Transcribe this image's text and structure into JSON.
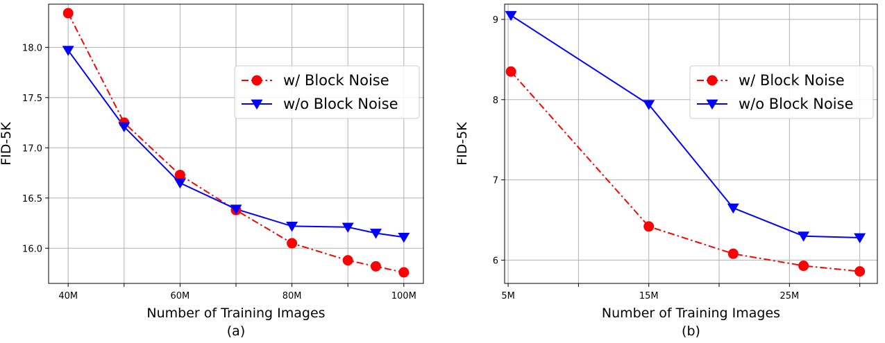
{
  "chart_data": [
    {
      "type": "line",
      "caption": "(a)",
      "xlabel": "Number of Training Images",
      "ylabel": "FID-5K",
      "x_ticks": [
        40,
        50,
        60,
        70,
        80,
        90,
        100
      ],
      "x_tick_labels": [
        "40M",
        "",
        "60M",
        "",
        "80M",
        "",
        "100M"
      ],
      "y_ticks": [
        16.0,
        16.5,
        17.0,
        17.5,
        18.0
      ],
      "y_tick_labels": [
        "16.0",
        "16.5",
        "17.0",
        "17.5",
        "18.0"
      ],
      "xlim": [
        36.5,
        103.5
      ],
      "ylim": [
        15.65,
        18.43
      ],
      "grid": true,
      "legend_position": "center-right",
      "series": [
        {
          "name": "w/ Block Noise",
          "color": "#ff0000",
          "marker": "circle",
          "linestyle": "dashdot",
          "x": [
            40,
            50,
            60,
            70,
            80,
            90,
            95,
            100
          ],
          "y": [
            18.34,
            17.25,
            16.73,
            16.38,
            16.05,
            15.88,
            15.82,
            15.76
          ]
        },
        {
          "name": "w/o Block Noise",
          "color": "#0000ff",
          "marker": "triangle-down",
          "linestyle": "solid",
          "x": [
            40,
            50,
            60,
            70,
            80,
            90,
            95,
            100
          ],
          "y": [
            17.97,
            17.21,
            16.65,
            16.39,
            16.22,
            16.21,
            16.15,
            16.11
          ]
        }
      ]
    },
    {
      "type": "line",
      "caption": "(b)",
      "xlabel": "Number of Training Images",
      "ylabel": "FID-5K",
      "x_ticks": [
        5,
        10,
        15,
        20,
        25,
        30
      ],
      "x_tick_labels": [
        "5M",
        "",
        "15M",
        "",
        "25M",
        ""
      ],
      "y_ticks": [
        6,
        7,
        8,
        9
      ],
      "y_tick_labels": [
        "6",
        "7",
        "8",
        "9"
      ],
      "xlim": [
        4.75,
        31.25
      ],
      "ylim": [
        5.71,
        9.19
      ],
      "grid": true,
      "legend_position": "top-right",
      "series": [
        {
          "name": "w/ Block Noise",
          "color": "#ff0000",
          "marker": "circle",
          "linestyle": "dashdot",
          "x": [
            5.2,
            15,
            21,
            26,
            30
          ],
          "y": [
            8.35,
            6.42,
            6.08,
            5.93,
            5.86
          ]
        },
        {
          "name": "w/o Block Noise",
          "color": "#0000ff",
          "marker": "triangle-down",
          "linestyle": "solid",
          "x": [
            5.2,
            15,
            21,
            26,
            30
          ],
          "y": [
            9.05,
            7.94,
            6.65,
            6.3,
            6.28
          ]
        }
      ]
    }
  ]
}
